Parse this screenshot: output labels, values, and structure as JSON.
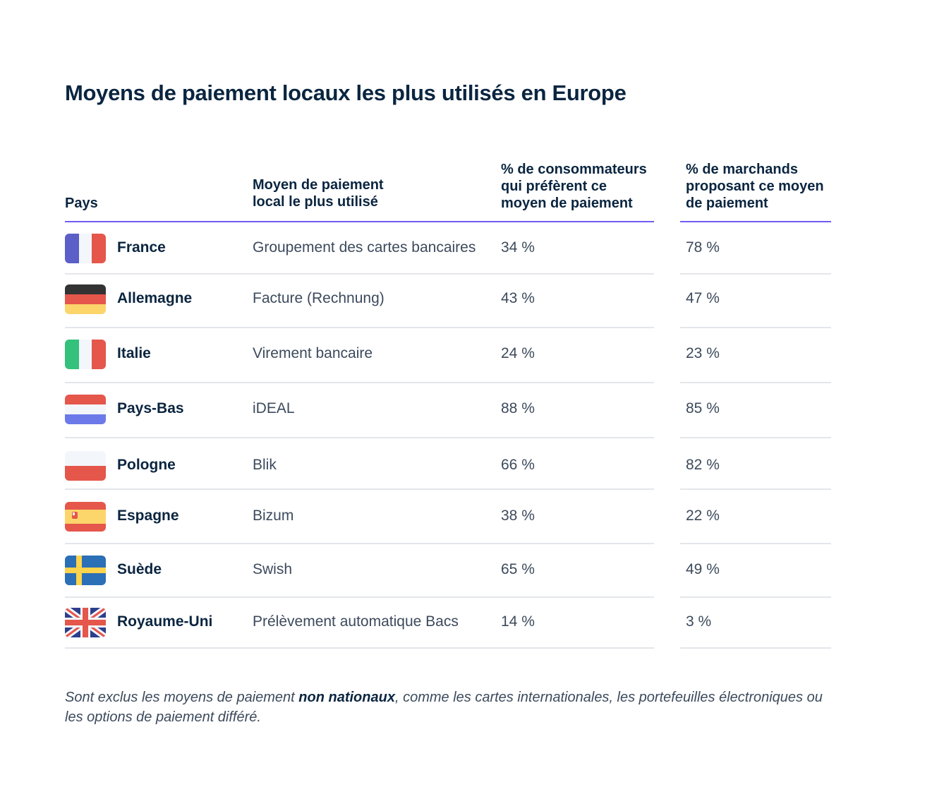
{
  "chart_data": {
    "type": "table",
    "title": "Moyens de paiement locaux les plus utilisés en Europe",
    "columns": [
      "Pays",
      "Moyen de paiement\nlocal le plus utilisé",
      "% de consommateurs\nqui préfèrent ce\nmoyen de paiement",
      "% de marchands\nproposant ce moyen\nde paiement"
    ],
    "rows": [
      {
        "country": "France",
        "flag": "france-flag-icon",
        "method": "Groupement des cartes bancaires",
        "consumers": "34 %",
        "merchants": "78 %"
      },
      {
        "country": "Allemagne",
        "flag": "germany-flag-icon",
        "method": "Facture (Rechnung)",
        "consumers": "43 %",
        "merchants": "47 %"
      },
      {
        "country": "Italie",
        "flag": "italy-flag-icon",
        "method": "Virement bancaire",
        "consumers": "24 %",
        "merchants": "23 %"
      },
      {
        "country": "Pays-Bas",
        "flag": "netherlands-flag-icon",
        "method": "iDEAL",
        "consumers": "88 %",
        "merchants": "85 %"
      },
      {
        "country": "Pologne",
        "flag": "poland-flag-icon",
        "method": "Blik",
        "consumers": "66 %",
        "merchants": "82 %"
      },
      {
        "country": "Espagne",
        "flag": "spain-flag-icon",
        "method": "Bizum",
        "consumers": "38 %",
        "merchants": "22 %"
      },
      {
        "country": "Suède",
        "flag": "sweden-flag-icon",
        "method": "Swish",
        "consumers": "65 %",
        "merchants": "49 %"
      },
      {
        "country": "Royaume-Uni",
        "flag": "uk-flag-icon",
        "method": "Prélèvement automatique Bacs",
        "consumers": "14 %",
        "merchants": "3 %"
      }
    ]
  },
  "footnote": {
    "part1": "Sont exclus les moyens de paiement ",
    "bold": "non nationaux",
    "part2": ", comme les cartes internationales, les portefeuilles électroniques ou les options de paiement différé."
  },
  "colors": {
    "text": "#0a2540",
    "muted": "#3c4a5c",
    "accent_line": "#6d5cf0",
    "rule": "#e3e6ea"
  }
}
